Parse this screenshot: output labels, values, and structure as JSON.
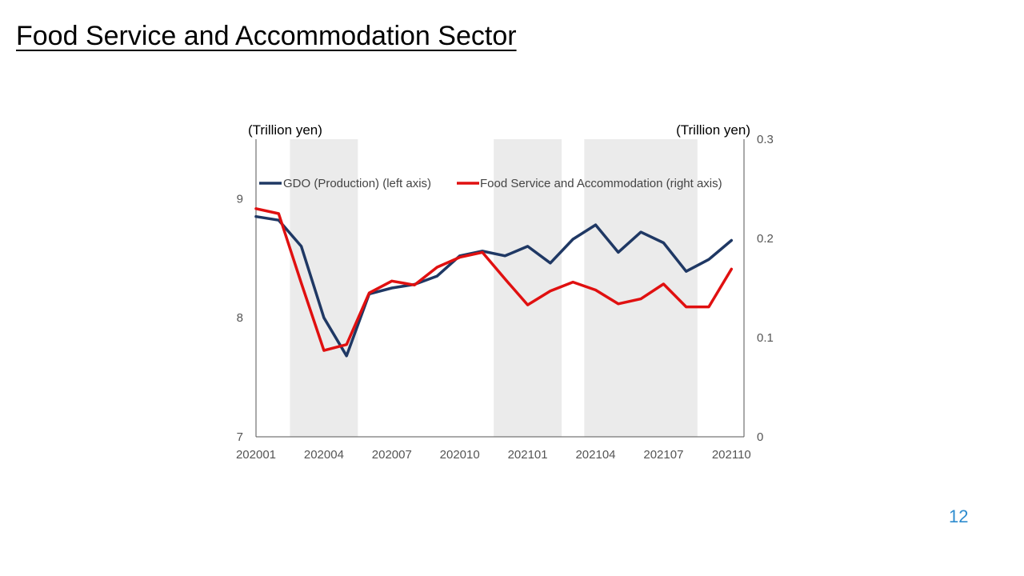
{
  "slide": {
    "title": "Food Service and Accommodation Sector",
    "page_number": "12"
  },
  "chart_data": {
    "type": "line",
    "title": "",
    "left_unit": "(Trillion yen)",
    "right_unit": "(Trillion yen)",
    "x": [
      "202001",
      "202002",
      "202003",
      "202004",
      "202005",
      "202006",
      "202007",
      "202008",
      "202009",
      "202010",
      "202011",
      "202012",
      "202101",
      "202102",
      "202103",
      "202104",
      "202105",
      "202106",
      "202107",
      "202108",
      "202109",
      "202110"
    ],
    "x_tick_labels": [
      "202001",
      "202004",
      "202007",
      "202010",
      "202101",
      "202104",
      "202107",
      "202110"
    ],
    "left_axis": {
      "ylim": [
        7,
        9.5
      ],
      "ticks": [
        "7",
        "8",
        "9"
      ]
    },
    "right_axis": {
      "ylim": [
        0,
        0.3
      ],
      "ticks": [
        "0",
        "0.1",
        "0.2",
        "0.3"
      ]
    },
    "series": [
      {
        "name": "GDO (Production) (left axis)",
        "axis": "left",
        "color": "#1f3864",
        "values": [
          8.85,
          8.82,
          8.6,
          8.0,
          7.68,
          8.2,
          8.25,
          8.28,
          8.35,
          8.52,
          8.56,
          8.52,
          8.6,
          8.46,
          8.66,
          8.78,
          8.55,
          8.72,
          8.63,
          8.39,
          8.49,
          8.65
        ]
      },
      {
        "name": "Food Service and Accommodation (right axis)",
        "axis": "right",
        "color": "#e01010",
        "values": [
          0.23,
          0.225,
          0.155,
          0.087,
          0.093,
          0.145,
          0.157,
          0.153,
          0.171,
          0.181,
          0.186,
          0.159,
          0.133,
          0.147,
          0.156,
          0.148,
          0.134,
          0.139,
          0.154,
          0.131,
          0.131,
          0.169
        ]
      }
    ],
    "shaded_periods": [
      [
        "202003",
        "202005"
      ],
      [
        "202012",
        "202102"
      ],
      [
        "202104",
        "202108"
      ]
    ],
    "shade_color": "#ebebeb",
    "legend_position": "top"
  }
}
